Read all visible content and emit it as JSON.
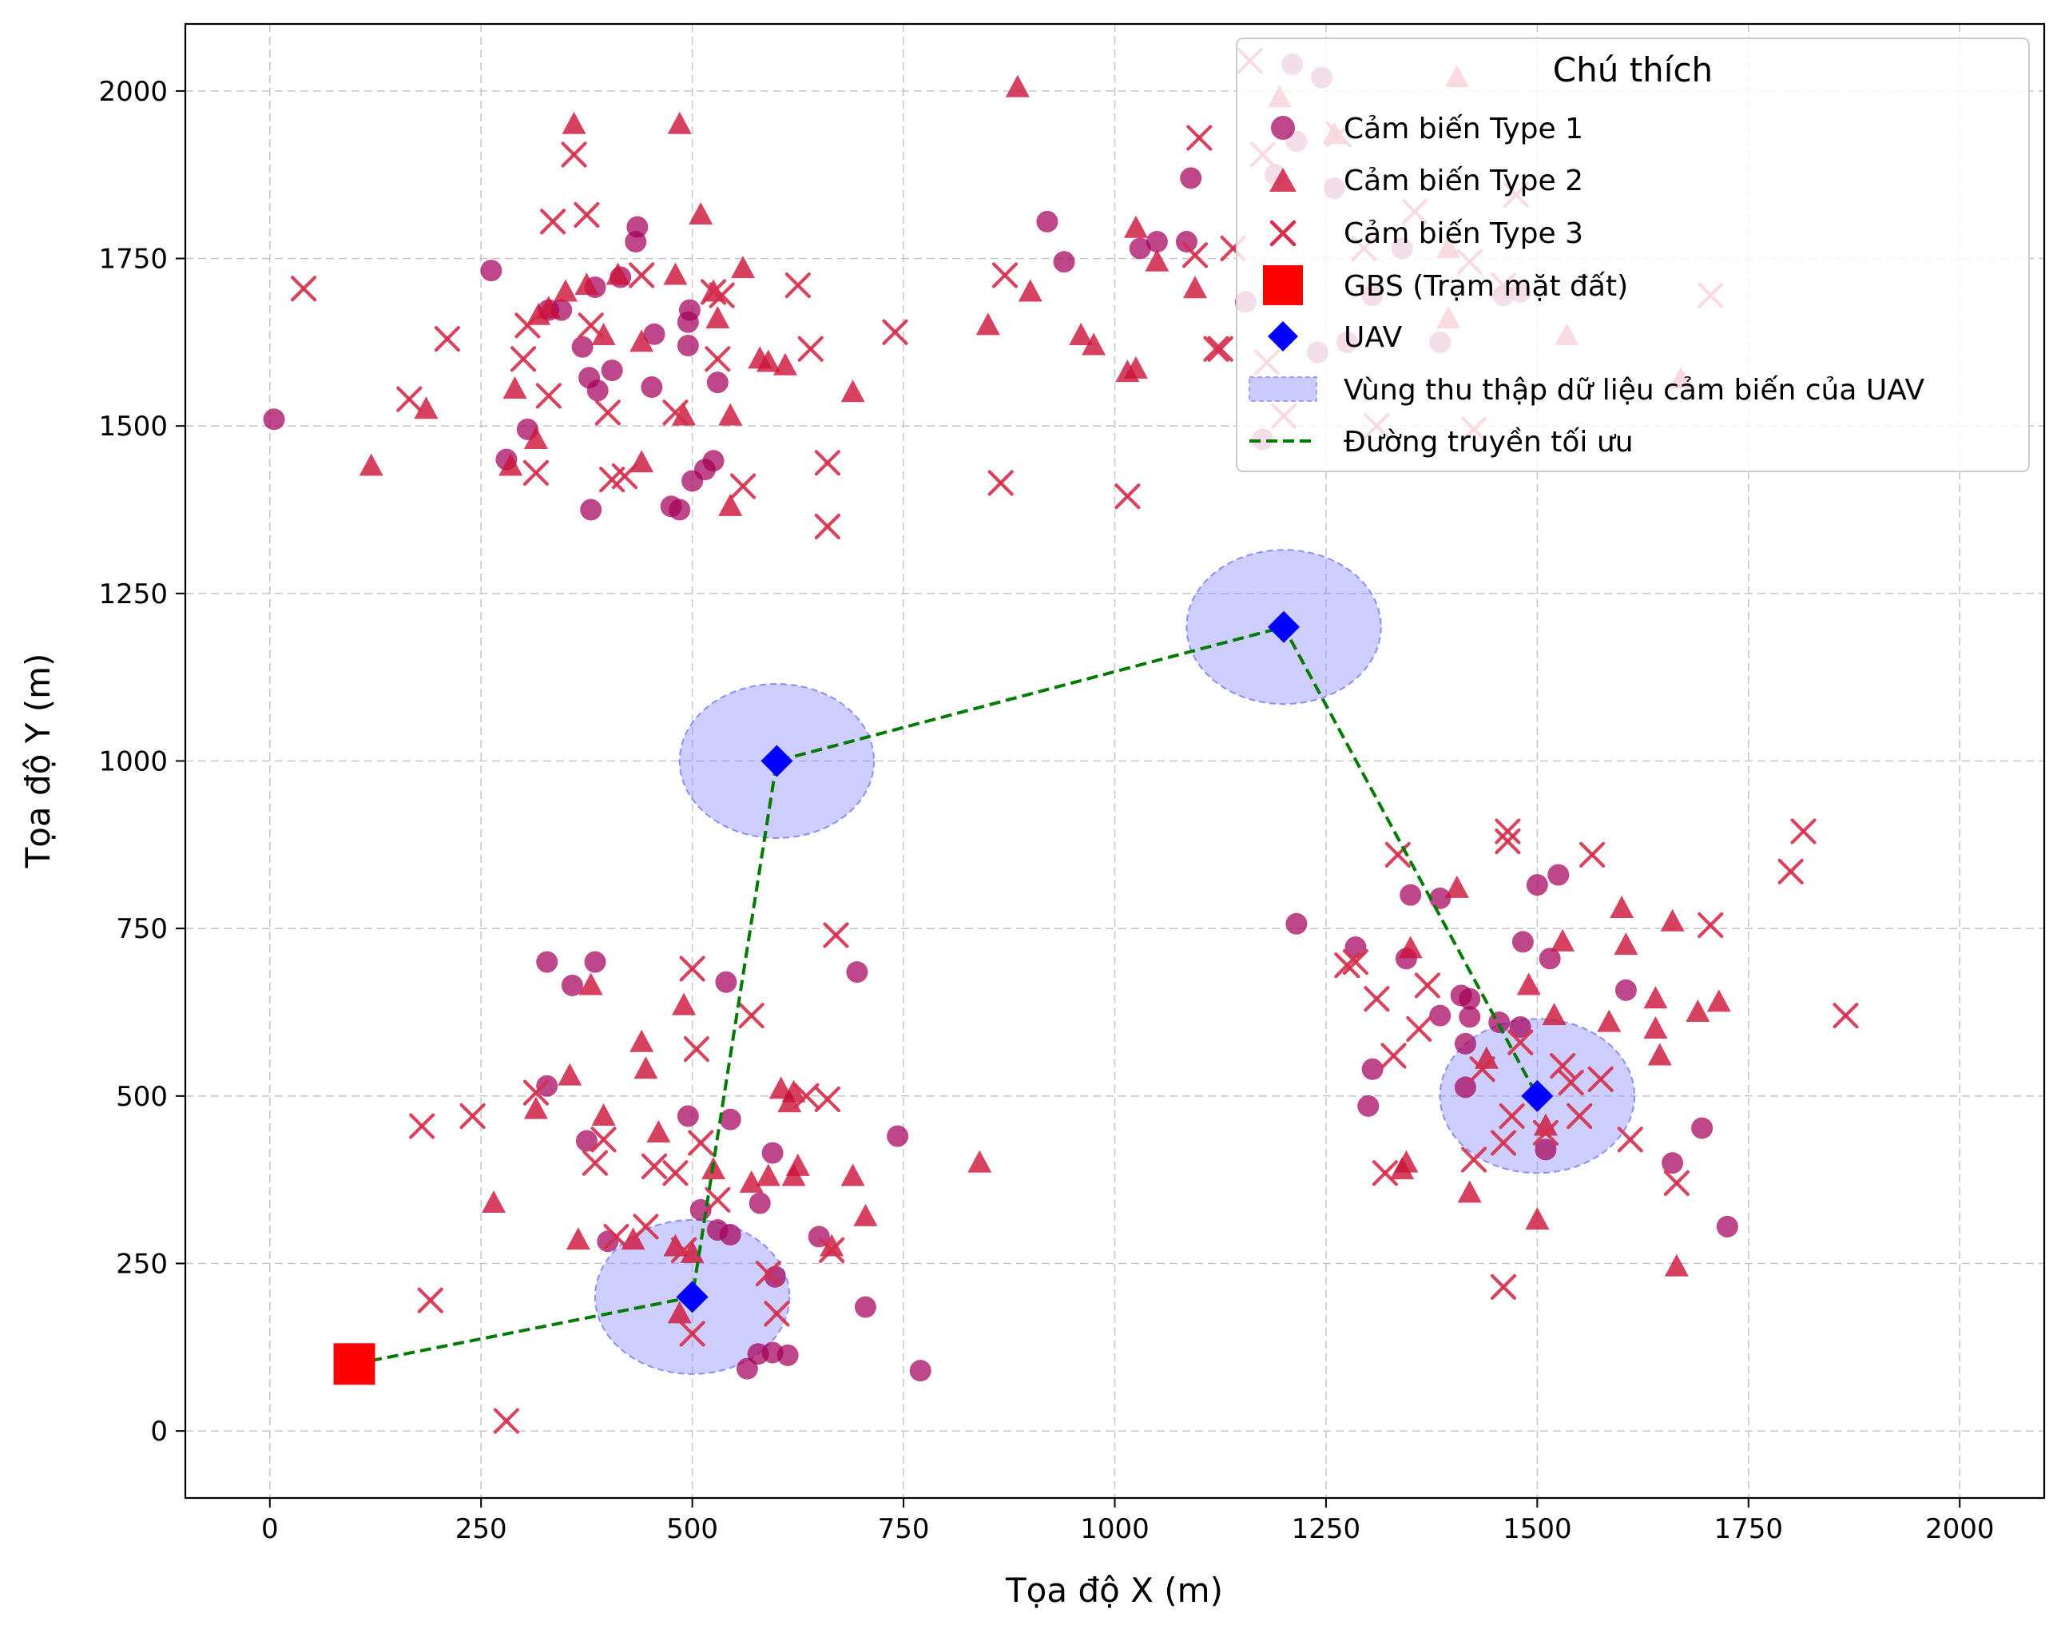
{
  "chart_data": {
    "type": "scatter",
    "xlabel": "Tọa độ X (m)",
    "ylabel": "Tọa độ Y (m)",
    "xlim": [
      -100,
      2100
    ],
    "ylim": [
      -100,
      2100
    ],
    "x_ticks": [
      0,
      250,
      500,
      750,
      1000,
      1250,
      1500,
      1750,
      2000
    ],
    "y_ticks": [
      0,
      250,
      500,
      750,
      1000,
      1250,
      1500,
      1750,
      2000
    ],
    "grid": true,
    "legend": {
      "title": "Chú thích",
      "placement": "top-right",
      "entries": [
        "Cảm biến Type 1",
        "Cảm biến Type 2",
        "Cảm biến Type 3",
        "GBS (Trạm mặt đất)",
        "UAV",
        "Vùng thu thập dữ liệu cảm biến của UAV",
        "Đường truyền tối ưu"
      ]
    },
    "colors": {
      "type1": "#a3005a",
      "type2": "#cc1238",
      "type3": "#d42f4d",
      "gbs": "#ff0000",
      "uav": "#0000ff",
      "region": "#8c8cff",
      "path": "#007a00"
    },
    "gbs": [
      100,
      100
    ],
    "uav": [
      [
        500,
        200
      ],
      [
        600,
        1000
      ],
      [
        1200,
        1200
      ],
      [
        1500,
        500
      ]
    ],
    "region_radius": 115,
    "path": [
      [
        100,
        100
      ],
      [
        500,
        200
      ],
      [
        600,
        1000
      ],
      [
        1200,
        1200
      ],
      [
        1500,
        500
      ]
    ],
    "series": [
      {
        "marker": "circle",
        "points": [
          [
            5,
            1510
          ],
          [
            262,
            1732
          ],
          [
            305,
            1495
          ],
          [
            280,
            1450
          ],
          [
            330,
            1673
          ],
          [
            345,
            1673
          ],
          [
            370,
            1618
          ],
          [
            385,
            1707
          ],
          [
            378,
            1572
          ],
          [
            388,
            1553
          ],
          [
            405,
            1583
          ],
          [
            415,
            1722
          ],
          [
            435,
            1797
          ],
          [
            433,
            1775
          ],
          [
            452,
            1558
          ],
          [
            455,
            1637
          ],
          [
            495,
            1655
          ],
          [
            495,
            1620
          ],
          [
            497,
            1673
          ],
          [
            500,
            1418
          ],
          [
            515,
            1435
          ],
          [
            525,
            1448
          ],
          [
            475,
            1380
          ],
          [
            485,
            1375
          ],
          [
            530,
            1565
          ],
          [
            380,
            1375
          ],
          [
            1090,
            1870
          ],
          [
            1085,
            1775
          ],
          [
            1050,
            1775
          ],
          [
            1030,
            1765
          ],
          [
            920,
            1805
          ],
          [
            940,
            1745
          ],
          [
            1155,
            1685
          ],
          [
            1190,
            1875
          ],
          [
            1215,
            1925
          ],
          [
            1240,
            1610
          ],
          [
            1275,
            1625
          ],
          [
            1260,
            1855
          ],
          [
            1305,
            1695
          ],
          [
            1340,
            1765
          ],
          [
            1385,
            1625
          ],
          [
            1460,
            1695
          ],
          [
            1480,
            1700
          ],
          [
            1210,
            2040
          ],
          [
            1245,
            2020
          ],
          [
            1175,
            1480
          ],
          [
            328,
            700
          ],
          [
            358,
            665
          ],
          [
            385,
            700
          ],
          [
            375,
            433
          ],
          [
            328,
            515
          ],
          [
            400,
            283
          ],
          [
            495,
            470
          ],
          [
            545,
            465
          ],
          [
            540,
            670
          ],
          [
            530,
            300
          ],
          [
            545,
            293
          ],
          [
            580,
            340
          ],
          [
            595,
            415
          ],
          [
            510,
            330
          ],
          [
            565,
            93
          ],
          [
            578,
            115
          ],
          [
            595,
            117
          ],
          [
            613,
            113
          ],
          [
            598,
            230
          ],
          [
            650,
            290
          ],
          [
            705,
            185
          ],
          [
            695,
            685
          ],
          [
            743,
            440
          ],
          [
            770,
            90
          ],
          [
            1215,
            757
          ],
          [
            1285,
            722
          ],
          [
            1305,
            540
          ],
          [
            1300,
            485
          ],
          [
            1350,
            800
          ],
          [
            1345,
            705
          ],
          [
            1385,
            795
          ],
          [
            1385,
            620
          ],
          [
            1410,
            650
          ],
          [
            1420,
            645
          ],
          [
            1420,
            618
          ],
          [
            1415,
            578
          ],
          [
            1415,
            513
          ],
          [
            1455,
            610
          ],
          [
            1483,
            730
          ],
          [
            1480,
            603
          ],
          [
            1500,
            815
          ],
          [
            1525,
            830
          ],
          [
            1515,
            705
          ],
          [
            1510,
            420
          ],
          [
            1605,
            658
          ],
          [
            1660,
            400
          ],
          [
            1695,
            452
          ],
          [
            1725,
            305
          ]
        ]
      },
      {
        "marker": "triangle",
        "points": [
          [
            120,
            1440
          ],
          [
            185,
            1525
          ],
          [
            285,
            1440
          ],
          [
            290,
            1555
          ],
          [
            315,
            1480
          ],
          [
            318,
            1665
          ],
          [
            330,
            1675
          ],
          [
            350,
            1700
          ],
          [
            360,
            1950
          ],
          [
            375,
            1710
          ],
          [
            395,
            1635
          ],
          [
            412,
            1725
          ],
          [
            440,
            1625
          ],
          [
            440,
            1445
          ],
          [
            480,
            1725
          ],
          [
            485,
            1950
          ],
          [
            490,
            1515
          ],
          [
            510,
            1815
          ],
          [
            525,
            1700
          ],
          [
            530,
            1660
          ],
          [
            545,
            1380
          ],
          [
            545,
            1515
          ],
          [
            560,
            1735
          ],
          [
            580,
            1600
          ],
          [
            590,
            1595
          ],
          [
            610,
            1590
          ],
          [
            690,
            1550
          ],
          [
            850,
            1650
          ],
          [
            900,
            1700
          ],
          [
            960,
            1635
          ],
          [
            975,
            1620
          ],
          [
            1015,
            1580
          ],
          [
            1025,
            1585
          ],
          [
            1025,
            1795
          ],
          [
            1050,
            1745
          ],
          [
            1095,
            1705
          ],
          [
            1195,
            1990
          ],
          [
            1260,
            1935
          ],
          [
            1405,
            2020
          ],
          [
            1395,
            1765
          ],
          [
            1395,
            1660
          ],
          [
            1535,
            1635
          ],
          [
            1670,
            1570
          ],
          [
            885,
            2005
          ],
          [
            315,
            480
          ],
          [
            355,
            530
          ],
          [
            365,
            285
          ],
          [
            380,
            665
          ],
          [
            395,
            470
          ],
          [
            430,
            285
          ],
          [
            440,
            580
          ],
          [
            445,
            540
          ],
          [
            460,
            445
          ],
          [
            480,
            275
          ],
          [
            485,
            175
          ],
          [
            490,
            635
          ],
          [
            500,
            265
          ],
          [
            525,
            390
          ],
          [
            570,
            370
          ],
          [
            590,
            380
          ],
          [
            605,
            510
          ],
          [
            615,
            490
          ],
          [
            620,
            505
          ],
          [
            620,
            380
          ],
          [
            625,
            395
          ],
          [
            665,
            275
          ],
          [
            690,
            380
          ],
          [
            705,
            320
          ],
          [
            840,
            400
          ],
          [
            1340,
            390
          ],
          [
            1345,
            400
          ],
          [
            1350,
            720
          ],
          [
            1405,
            810
          ],
          [
            1420,
            355
          ],
          [
            1440,
            555
          ],
          [
            1490,
            665
          ],
          [
            1500,
            315
          ],
          [
            1510,
            455
          ],
          [
            1520,
            620
          ],
          [
            1530,
            730
          ],
          [
            1585,
            610
          ],
          [
            1600,
            780
          ],
          [
            1605,
            725
          ],
          [
            1640,
            645
          ],
          [
            1640,
            600
          ],
          [
            1645,
            560
          ],
          [
            1660,
            760
          ],
          [
            1665,
            245
          ],
          [
            1690,
            625
          ],
          [
            1715,
            640
          ],
          [
            265,
            340
          ]
        ]
      },
      {
        "marker": "x",
        "points": [
          [
            40,
            1705
          ],
          [
            165,
            1540
          ],
          [
            210,
            1630
          ],
          [
            300,
            1600
          ],
          [
            305,
            1650
          ],
          [
            315,
            1430
          ],
          [
            330,
            1545
          ],
          [
            335,
            1805
          ],
          [
            360,
            1905
          ],
          [
            375,
            1815
          ],
          [
            380,
            1650
          ],
          [
            400,
            1520
          ],
          [
            405,
            1420
          ],
          [
            420,
            1425
          ],
          [
            440,
            1725
          ],
          [
            480,
            1520
          ],
          [
            525,
            1700
          ],
          [
            530,
            1600
          ],
          [
            535,
            1695
          ],
          [
            560,
            1410
          ],
          [
            625,
            1710
          ],
          [
            640,
            1615
          ],
          [
            660,
            1445
          ],
          [
            660,
            1350
          ],
          [
            740,
            1640
          ],
          [
            865,
            1415
          ],
          [
            870,
            1725
          ],
          [
            1015,
            1395
          ],
          [
            1095,
            1755
          ],
          [
            1100,
            1930
          ],
          [
            1120,
            1615
          ],
          [
            1125,
            1615
          ],
          [
            1140,
            1765
          ],
          [
            1160,
            2045
          ],
          [
            1175,
            1905
          ],
          [
            1180,
            1595
          ],
          [
            1200,
            1515
          ],
          [
            1265,
            1935
          ],
          [
            1295,
            1765
          ],
          [
            1310,
            1500
          ],
          [
            1355,
            1820
          ],
          [
            1420,
            1745
          ],
          [
            1425,
            1495
          ],
          [
            1460,
            1710
          ],
          [
            1475,
            1845
          ],
          [
            1705,
            1695
          ],
          [
            180,
            455
          ],
          [
            190,
            195
          ],
          [
            240,
            470
          ],
          [
            280,
            15
          ],
          [
            315,
            505
          ],
          [
            385,
            400
          ],
          [
            395,
            435
          ],
          [
            410,
            290
          ],
          [
            445,
            305
          ],
          [
            455,
            395
          ],
          [
            480,
            385
          ],
          [
            490,
            270
          ],
          [
            500,
            690
          ],
          [
            500,
            145
          ],
          [
            505,
            570
          ],
          [
            510,
            430
          ],
          [
            530,
            345
          ],
          [
            570,
            620
          ],
          [
            590,
            235
          ],
          [
            600,
            175
          ],
          [
            635,
            500
          ],
          [
            660,
            495
          ],
          [
            670,
            740
          ],
          [
            665,
            270
          ],
          [
            1275,
            695
          ],
          [
            1285,
            700
          ],
          [
            1310,
            645
          ],
          [
            1320,
            385
          ],
          [
            1330,
            560
          ],
          [
            1335,
            860
          ],
          [
            1360,
            600
          ],
          [
            1370,
            665
          ],
          [
            1425,
            405
          ],
          [
            1435,
            540
          ],
          [
            1460,
            430
          ],
          [
            1460,
            215
          ],
          [
            1465,
            880
          ],
          [
            1465,
            895
          ],
          [
            1470,
            470
          ],
          [
            1480,
            580
          ],
          [
            1510,
            445
          ],
          [
            1530,
            545
          ],
          [
            1540,
            520
          ],
          [
            1550,
            470
          ],
          [
            1565,
            860
          ],
          [
            1575,
            525
          ],
          [
            1610,
            435
          ],
          [
            1665,
            370
          ],
          [
            1705,
            755
          ],
          [
            1800,
            835
          ],
          [
            1815,
            895
          ],
          [
            1865,
            620
          ]
        ]
      }
    ]
  }
}
